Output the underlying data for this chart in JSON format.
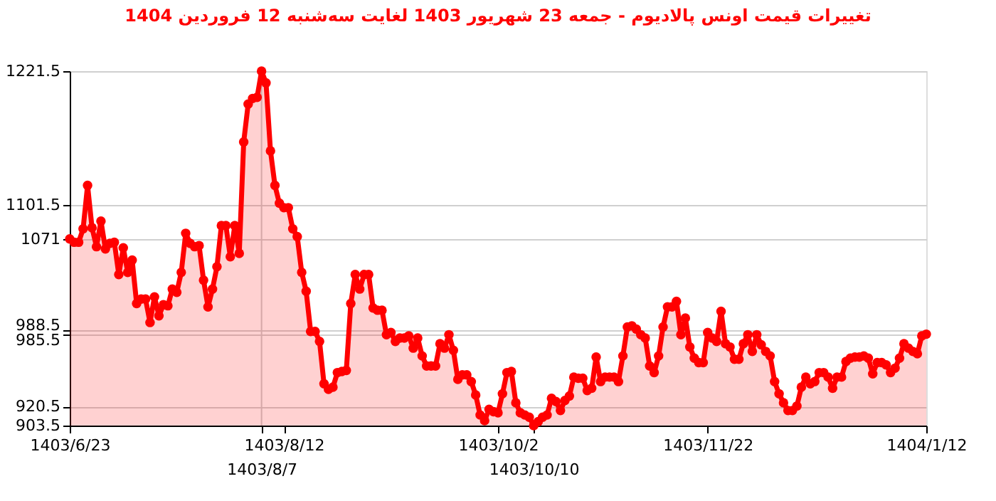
{
  "chart_data": {
    "type": "area",
    "title": "تغییرات قیمت اونس پالادیوم - جمعه  23 شهریور 1403 لغایت  سه‌شنبه  12 فروردین 1404",
    "categories": [
      "1403/6/23",
      null,
      null,
      null,
      null,
      null,
      null,
      null,
      null,
      null,
      null,
      null,
      null,
      null,
      null,
      null,
      null,
      null,
      null,
      null,
      null,
      null,
      null,
      null,
      null,
      null,
      null,
      null,
      null,
      null,
      null,
      null,
      null,
      null,
      null,
      null,
      null,
      null,
      null,
      null,
      null,
      null,
      null,
      "1403/8/7",
      null,
      null,
      null,
      null,
      "1403/8/12",
      null,
      null,
      null,
      null,
      null,
      null,
      null,
      null,
      null,
      null,
      null,
      null,
      null,
      null,
      null,
      null,
      null,
      null,
      null,
      null,
      null,
      null,
      null,
      null,
      null,
      null,
      null,
      null,
      null,
      null,
      null,
      null,
      null,
      null,
      null,
      null,
      null,
      null,
      null,
      null,
      null,
      null,
      null,
      null,
      null,
      null,
      null,
      "1403/10/2",
      null,
      null,
      null,
      null,
      null,
      null,
      null,
      "1403/10/10",
      null,
      null,
      null,
      null,
      null,
      null,
      null,
      null,
      null,
      null,
      null,
      null,
      null,
      null,
      null,
      null,
      null,
      null,
      null,
      null,
      null,
      null,
      null,
      null,
      null,
      null,
      null,
      null,
      null,
      null,
      null,
      null,
      null,
      null,
      null,
      null,
      null,
      null,
      "1403/11/22",
      null,
      null,
      null,
      null,
      null,
      null,
      null,
      null,
      null,
      null,
      null,
      null,
      null,
      null,
      null,
      null,
      null,
      null,
      null,
      null,
      null,
      null,
      null,
      null,
      null,
      null,
      null,
      null,
      null,
      null,
      null,
      null,
      null,
      null,
      null,
      null,
      null,
      null,
      null,
      null,
      null,
      null,
      null,
      null,
      null,
      null,
      null,
      null,
      "1404/1/12"
    ],
    "series": [
      {
        "color": "#ff0000",
        "values": [
          1071,
          1068,
          1068,
          1080,
          1119,
          1081,
          1064,
          1087,
          1062,
          1067,
          1068,
          1039,
          1063,
          1041,
          1052,
          1013,
          1017,
          1017,
          996,
          1019,
          1002,
          1012,
          1011,
          1026,
          1023,
          1041,
          1076,
          1067,
          1064,
          1065,
          1034,
          1010,
          1026,
          1046,
          1083,
          1083,
          1055,
          1083,
          1058,
          1158,
          1192,
          1197,
          1198,
          1221.5,
          1211,
          1150,
          1119,
          1103,
          1099,
          1099,
          1080,
          1073,
          1041,
          1024,
          988,
          988,
          979,
          941,
          936,
          938,
          951,
          952,
          953,
          1013,
          1039,
          1026,
          1039,
          1039,
          1009,
          1007,
          1007,
          985,
          987,
          979,
          982,
          982,
          984,
          973,
          982,
          966,
          957,
          957,
          957,
          977,
          973,
          985,
          971,
          945,
          949,
          949,
          943,
          931,
          913,
          908,
          918,
          916,
          915,
          932,
          951,
          952,
          924,
          915,
          913,
          911,
          903.5,
          907,
          911,
          913,
          928,
          925,
          917,
          926,
          930,
          947,
          946,
          946,
          935,
          937,
          965,
          943,
          947,
          947,
          947,
          943,
          966,
          992,
          993,
          990,
          985,
          982,
          957,
          951,
          966,
          992,
          1010,
          1010,
          1015,
          985,
          1000,
          974,
          964,
          960,
          960,
          987,
          982,
          979,
          1006,
          977,
          974,
          963,
          963,
          977,
          985,
          970,
          985,
          976,
          970,
          966,
          943,
          932,
          924,
          917,
          917,
          921,
          938,
          947,
          941,
          943,
          951,
          951,
          947,
          937,
          947,
          947,
          961,
          964,
          965,
          965,
          966,
          964,
          950,
          960,
          960,
          958,
          951,
          955,
          964,
          977,
          973,
          970,
          968,
          984,
          985.5
        ]
      }
    ],
    "ylim": [
      903.5,
      1221.5
    ],
    "yticks": [
      903.5,
      920.5,
      985.5,
      988.5,
      1071,
      1101.5,
      1221.5
    ],
    "ref_lines": [
      {
        "axis": "x",
        "value": "1403/8/7",
        "color": "#cccccc"
      }
    ],
    "grid": "y",
    "marker": "circle",
    "line_style": "solid"
  }
}
